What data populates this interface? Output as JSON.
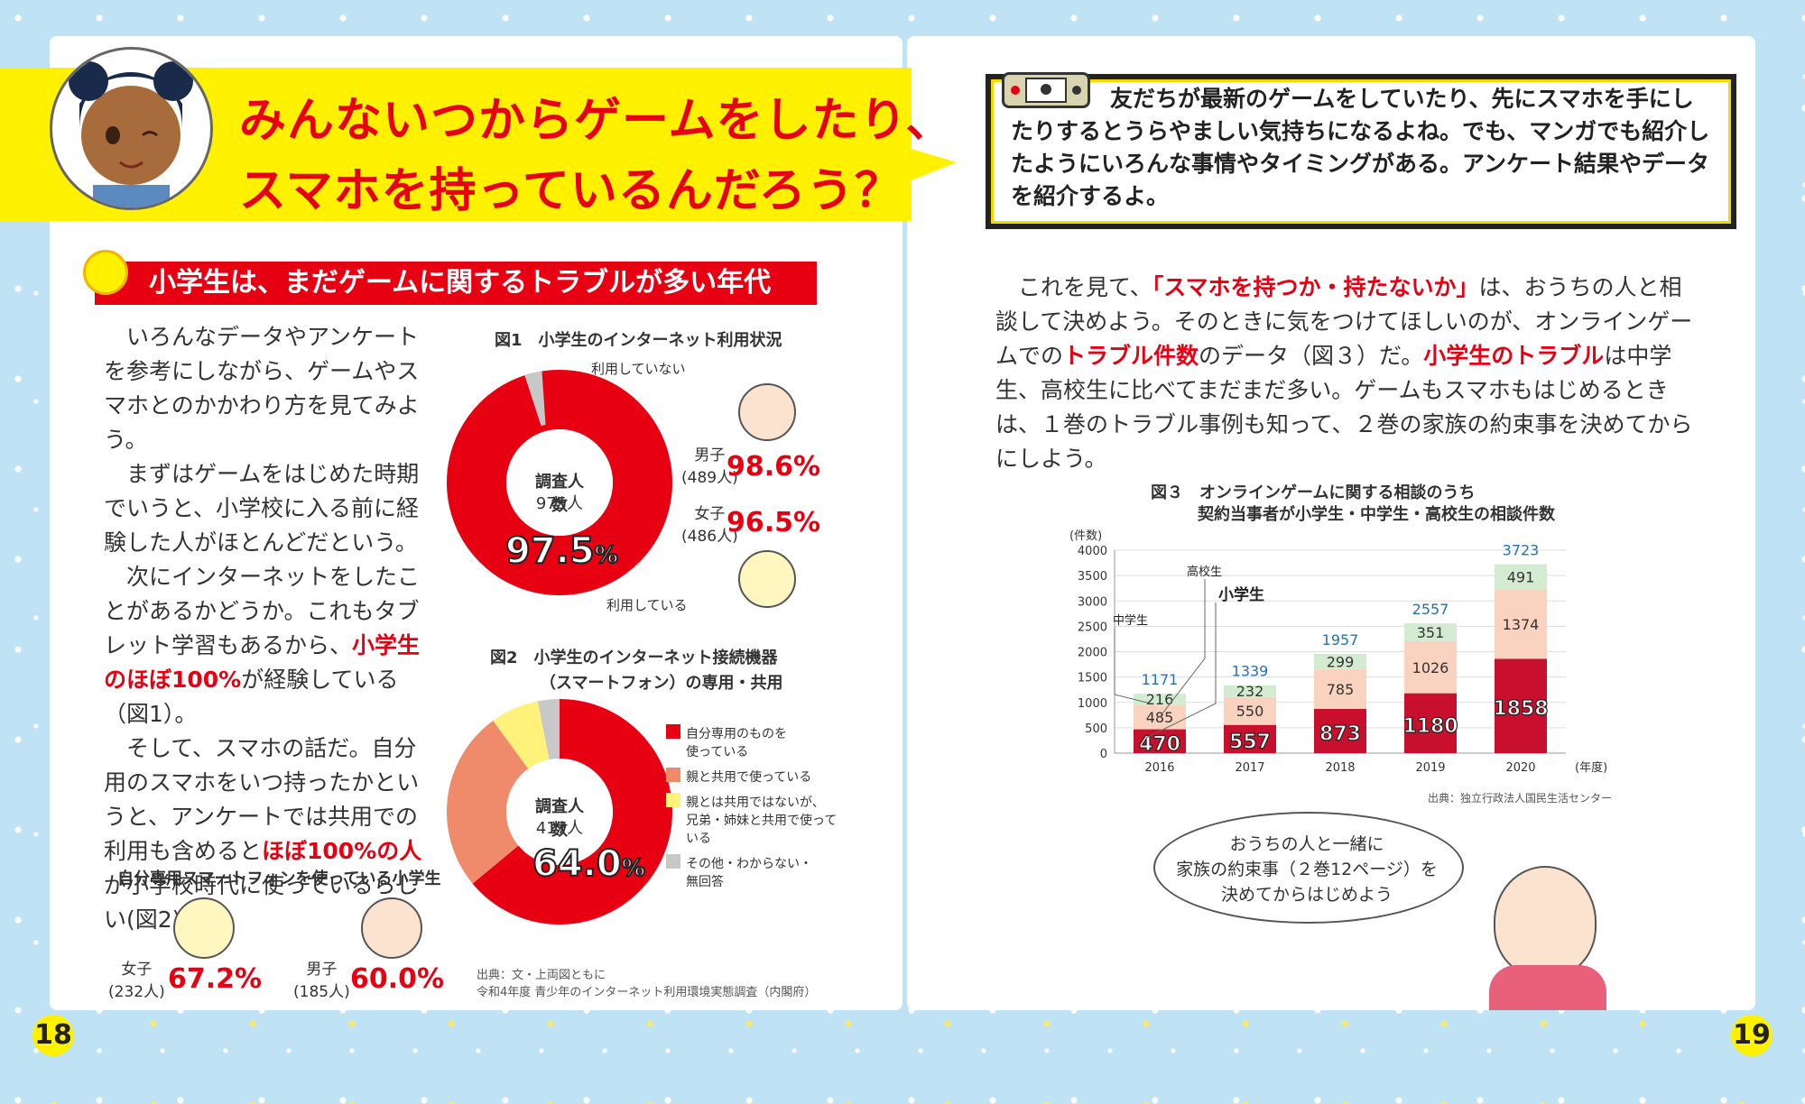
{
  "title": {
    "line1": "みんないつからゲームをしたり、",
    "line2": "スマホを持っているんだろう？"
  },
  "intro": {
    "text": "友だちが最新のゲームをしていたり、先にスマホを手にしたりするとうらやましい気持ちになるよね。でも、マンガでも紹介したようにいろんな事情やタイミングがある。アンケート結果やデータを紹介するよ。"
  },
  "left": {
    "heading": "小学生は、まだゲームに関するトラブルが多い年代",
    "p1": "いろんなデータやアンケートを参考にしながら、ゲームやスマホとのかかわり方を見てみよう。",
    "p2": "まずはゲームをはじめた時期でいうと、小学校に入る前に経験した人がほとんどだという。",
    "p3a": "次にインターネットをしたことがあるかどうか。これもタブレット学習もあるから、",
    "p3red": "小学生のほぼ100%",
    "p3b": "が経験している（図1）。",
    "p4a": "そして、スマホの話だ。自分用のスマホをいつ持ったかというと、アンケートでは共用での利用も含めると",
    "p4red": "ほぼ100%の人",
    "p4b": "が小学校時代に使っているらしい(図2)。"
  },
  "fig1": {
    "title": "図1　小学生のインターネット利用状況",
    "label_not_used": "利用していない",
    "label_used": "利用している",
    "center_label": "調査人数",
    "center_count": "975人",
    "total_pct": "97.5",
    "pct_sign": "%",
    "boys_label": "男子",
    "boys_n": "(489人)",
    "boys_pct": "98.6%",
    "girls_label": "女子",
    "girls_n": "(486人)",
    "girls_pct": "96.5%"
  },
  "fig2": {
    "title1": "図2　小学生のインターネット接続機器",
    "title2": "（スマートフォン）の専用・共用",
    "center_label": "調査人数",
    "center_count": "417人",
    "main_pct": "64.0",
    "pct_sign": "%",
    "legend": [
      {
        "label1": "自分専用のものを",
        "label2": "使っている",
        "color": "#e60012"
      },
      {
        "label1": "親と共用で使っている",
        "label2": "",
        "color": "#ef8a6a"
      },
      {
        "label1": "親とは共用ではないが、",
        "label2": "兄弟・姉妹と共用で使っている",
        "color": "#fff27a"
      },
      {
        "label1": "その他・わからない・",
        "label2": "無回答",
        "color": "#c8c8c8"
      }
    ]
  },
  "own_phone": {
    "title": "自分専用スマートフォンを使っている小学生",
    "girls_label": "女子",
    "girls_n": "(232人)",
    "girls_pct": "67.2%",
    "boys_label": "男子",
    "boys_n": "(185人)",
    "boys_pct": "60.0%"
  },
  "source1": {
    "line1": "出典：文・上両図ともに",
    "line2": "令和4年度 青少年のインターネット利用環境実態調査（内閣府）"
  },
  "right": {
    "p1a": "これを見て、",
    "p1red": "「スマホを持つか・持たないか」",
    "p1b": "は、おうちの人と相談して決めよう。そのときに気をつけてほしいのが、オンラインゲームでの",
    "p1red2": "トラブル件数",
    "p1c": "のデータ（図３）だ。",
    "p1red3": "小学生のトラブル",
    "p1d": "は中学生、高校生に比べてまだまだ多い。ゲームもスマホもはじめるときは、１巻のトラブル事例も知って、２巻の家族の約束事を決めてからにしよう。"
  },
  "chart_data": {
    "type": "bar",
    "title": "図３　オンラインゲームに関する相談のうち",
    "subtitle": "契約当事者が小学生・中学生・高校生の相談件数",
    "ylabel": "(件数)",
    "xlabel": "(年度)",
    "ylim": [
      0,
      4000
    ],
    "yticks": [
      0,
      500,
      1000,
      1500,
      2000,
      2500,
      3000,
      3500,
      4000
    ],
    "categories": [
      "2016",
      "2017",
      "2018",
      "2019",
      "2020"
    ],
    "series": [
      {
        "name": "小学生",
        "values": [
          470,
          557,
          873,
          1180,
          1858
        ],
        "color": "#c8102e"
      },
      {
        "name": "中学生",
        "values": [
          485,
          550,
          785,
          1026,
          1374
        ],
        "color": "#f9d3c0"
      },
      {
        "name": "高校生",
        "values": [
          216,
          232,
          299,
          351,
          491
        ],
        "color": "#d3ecd1"
      }
    ],
    "totals": [
      1171,
      1339,
      1957,
      2557,
      3723
    ],
    "source": "出典：独立行政法人国民生活センター",
    "grid": true
  },
  "bubble": {
    "line1": "おうちの人と一緒に",
    "line2": "家族の約束事（２巻12ページ）を",
    "line3": "決めてからはじめよう"
  },
  "page_left": "18",
  "page_right": "19"
}
